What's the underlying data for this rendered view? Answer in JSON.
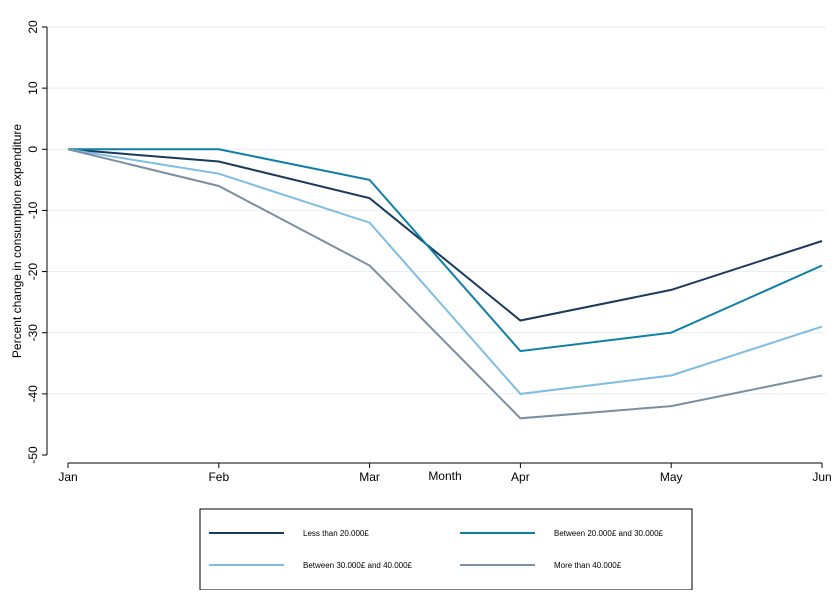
{
  "chart_data": {
    "type": "line",
    "title": "",
    "xlabel": "Month",
    "ylabel": "Percent change in consumption expenditure",
    "categories": [
      "Jan",
      "Feb",
      "Mar",
      "Apr",
      "May",
      "Jun"
    ],
    "ylim": [
      -50,
      20
    ],
    "yticks": [
      -50,
      -40,
      -30,
      -20,
      -10,
      0,
      10,
      20
    ],
    "grid": true,
    "legend_position": "bottom",
    "series": [
      {
        "name": "Less than 20.000£",
        "color": "#1a3a5c",
        "values": [
          0,
          -2,
          -8,
          -28,
          -23,
          -15
        ]
      },
      {
        "name": "Between 20.000£ and 30.000£",
        "color": "#0e7fa6",
        "values": [
          0,
          0,
          -5,
          -33,
          -30,
          -19
        ]
      },
      {
        "name": "Between 30.000£ and 40.000£",
        "color": "#7fbde3",
        "values": [
          0,
          -4,
          -12,
          -40,
          -37,
          -29
        ]
      },
      {
        "name": "More than 40.000£",
        "color": "#7a8fa3",
        "values": [
          0,
          -6,
          -19,
          -44,
          -42,
          -37
        ]
      }
    ]
  }
}
